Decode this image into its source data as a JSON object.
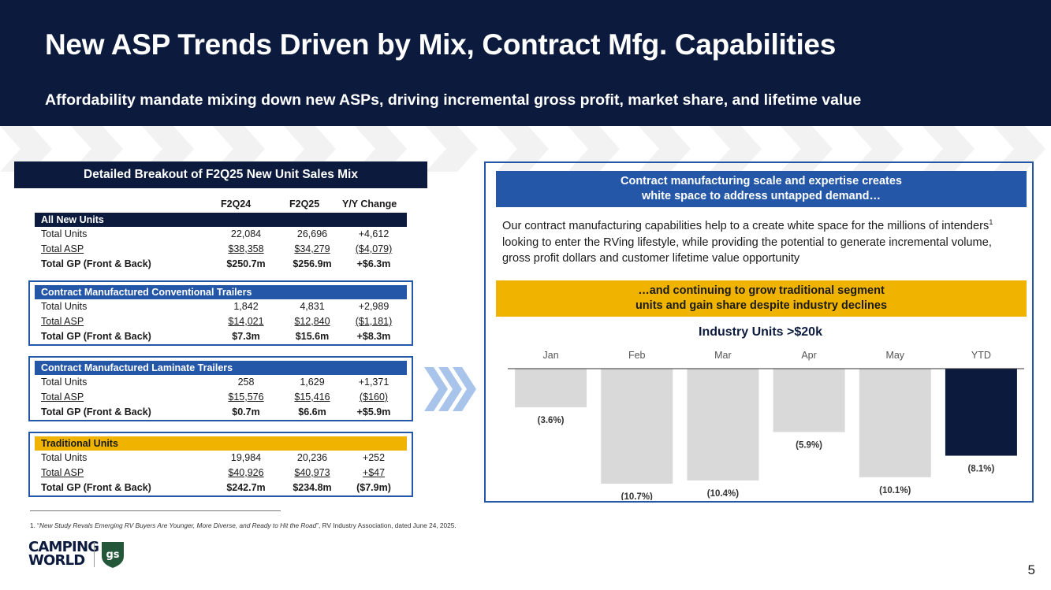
{
  "header": {
    "title": "New ASP Trends Driven by Mix, Contract Mfg. Capabilities",
    "subtitle": "Affordability mandate mixing down new ASPs, driving incremental gross profit, market share, and lifetime value"
  },
  "table": {
    "heading": "Detailed Breakout of F2Q25 New Unit Sales Mix",
    "columns": [
      "F2Q24",
      "F2Q25",
      "Y/Y Change"
    ],
    "sections": [
      {
        "title": "All New Units",
        "rows": [
          {
            "label": "Total Units",
            "f2q24": "22,084",
            "f2q25": "26,696",
            "change": "+4,612"
          },
          {
            "label": "Total ASP",
            "f2q24": "$38,358",
            "f2q25": "$34,279",
            "change": "($4,079)"
          },
          {
            "label": "Total GP (Front & Back)",
            "f2q24": "$250.7m",
            "f2q25": "$256.9m",
            "change": "+$6.3m"
          }
        ]
      },
      {
        "title": "Contract Manufactured Conventional Trailers",
        "rows": [
          {
            "label": "Total Units",
            "f2q24": "1,842",
            "f2q25": "4,831",
            "change": "+2,989"
          },
          {
            "label": "Total ASP",
            "f2q24": "$14,021",
            "f2q25": "$12,840",
            "change": "($1,181)"
          },
          {
            "label": "Total GP (Front & Back)",
            "f2q24": "$7.3m",
            "f2q25": "$15.6m",
            "change": "+$8.3m"
          }
        ]
      },
      {
        "title": "Contract Manufactured Laminate Trailers",
        "rows": [
          {
            "label": "Total Units",
            "f2q24": "258",
            "f2q25": "1,629",
            "change": "+1,371"
          },
          {
            "label": "Total ASP",
            "f2q24": "$15,576",
            "f2q25": "$15,416",
            "change": "($160)"
          },
          {
            "label": "Total GP (Front & Back)",
            "f2q24": "$0.7m",
            "f2q25": "$6.6m",
            "change": "+$5.9m"
          }
        ]
      },
      {
        "title": "Traditional Units",
        "rows": [
          {
            "label": "Total Units",
            "f2q24": "19,984",
            "f2q25": "20,236",
            "change": "+252"
          },
          {
            "label": "Total ASP",
            "f2q24": "$40,926",
            "f2q25": "$40,973",
            "change": "+$47"
          },
          {
            "label": "Total GP (Front & Back)",
            "f2q24": "$242.7m",
            "f2q25": "$234.8m",
            "change": "($7.9m)"
          }
        ]
      }
    ]
  },
  "right_panel": {
    "blue_band_line1": "Contract manufacturing scale and expertise creates",
    "blue_band_line2": "white space to address untapped demand…",
    "paragraph_part1": "Our contract manufacturing capabilities help to a create white space for the millions of intenders",
    "paragraph_sup": "1",
    "paragraph_part2": " looking to enter the RVing lifestyle, while providing the potential to generate incremental volume, gross profit dollars and customer lifetime value opportunity",
    "yellow_band_line1": "…and continuing to grow traditional segment",
    "yellow_band_line2": "units and gain share despite industry declines"
  },
  "chart_data": {
    "type": "bar",
    "title": "Industry Units >$20k",
    "categories": [
      "Jan",
      "Feb",
      "Mar",
      "Apr",
      "May",
      "YTD"
    ],
    "values": [
      -3.6,
      -10.7,
      -10.4,
      -5.9,
      -10.1,
      -8.1
    ],
    "labels": [
      "(3.6%)",
      "(10.7%)",
      "(10.4%)",
      "(5.9%)",
      "(10.1%)",
      "(8.1%)"
    ],
    "unit": "%",
    "ylim": [
      -10.7,
      0
    ],
    "highlight_category": "YTD",
    "colors": {
      "default": "#d9d9d9",
      "highlight": "#0c1b3d",
      "label": "#333333",
      "axis_text": "#555555"
    }
  },
  "footnote": {
    "prefix": "1. “",
    "title": "New Study Revals Emerging RV Buyers Are Younger, More Diverse, and Ready to Hit the Road",
    "suffix": "”, RV Industry Association, dated June 24, 2025."
  },
  "logo": {
    "line1": "CAMPING",
    "line2": "WORLD",
    "badge": "gs"
  },
  "page_number": "5",
  "colors": {
    "navy": "#0c1b3d",
    "blue": "#2457a8",
    "yellow": "#f0b400"
  }
}
